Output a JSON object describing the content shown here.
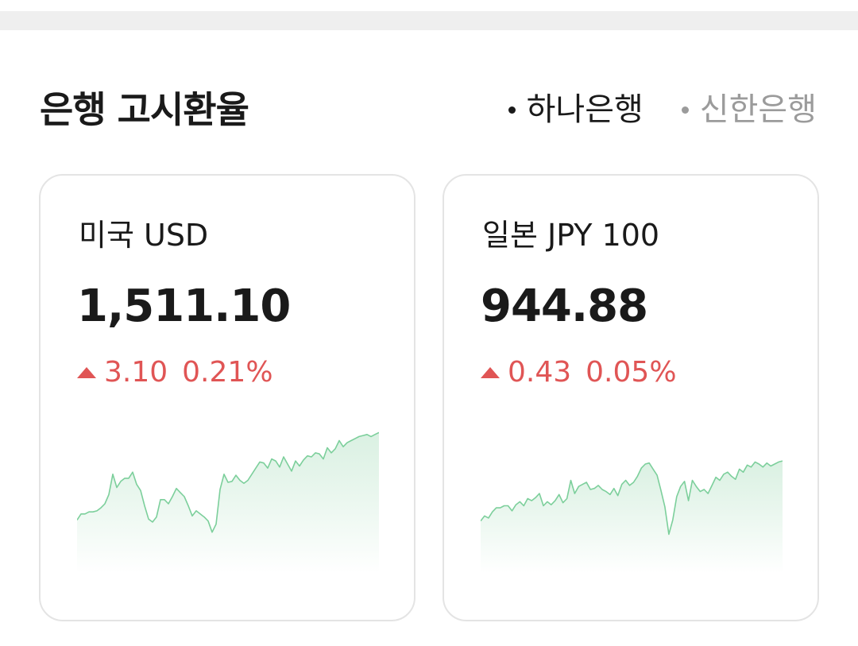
{
  "header": {
    "title": "은행 고시환율",
    "banks": [
      {
        "label": "하나은행",
        "active": true
      },
      {
        "label": "신한은행",
        "active": false
      }
    ]
  },
  "cards": [
    {
      "label": "미국 USD",
      "rate": "1,511.10",
      "change": "3.10",
      "change_pct": "0.21%",
      "direction": "up",
      "trend": [
        41,
        47,
        47,
        49,
        49,
        50,
        53,
        57,
        66,
        86,
        73,
        79,
        82,
        82,
        88,
        76,
        70,
        55,
        42,
        39,
        44,
        61,
        61,
        57,
        64,
        72,
        68,
        64,
        55,
        45,
        50,
        47,
        44,
        40,
        29,
        37,
        71,
        86,
        78,
        79,
        85,
        80,
        77,
        80,
        86,
        92,
        98,
        97,
        92,
        101,
        99,
        93,
        103,
        96,
        89,
        99,
        94,
        100,
        104,
        103,
        107,
        106,
        101,
        112,
        107,
        111,
        119,
        113,
        117,
        119,
        121,
        123,
        124,
        125,
        123,
        125,
        127
      ],
      "colors": {
        "line": "#7ccf9b",
        "fill_top": "#d6efdf",
        "up": "#e05555"
      }
    },
    {
      "label": "일본 JPY 100",
      "rate": "944.88",
      "change": "0.43",
      "change_pct": "0.05%",
      "direction": "up",
      "trend": [
        40,
        45,
        43,
        49,
        53,
        53,
        55,
        55,
        50,
        56,
        59,
        55,
        62,
        60,
        63,
        67,
        55,
        59,
        56,
        60,
        66,
        58,
        62,
        80,
        67,
        74,
        76,
        78,
        71,
        72,
        75,
        71,
        69,
        66,
        72,
        65,
        76,
        80,
        75,
        78,
        84,
        92,
        96,
        97,
        91,
        85,
        70,
        54,
        27,
        41,
        64,
        74,
        79,
        60,
        80,
        74,
        69,
        71,
        67,
        75,
        83,
        80,
        86,
        88,
        84,
        81,
        91,
        88,
        95,
        93,
        98,
        96,
        93,
        97,
        94,
        96,
        98,
        99
      ]
    }
  ]
}
